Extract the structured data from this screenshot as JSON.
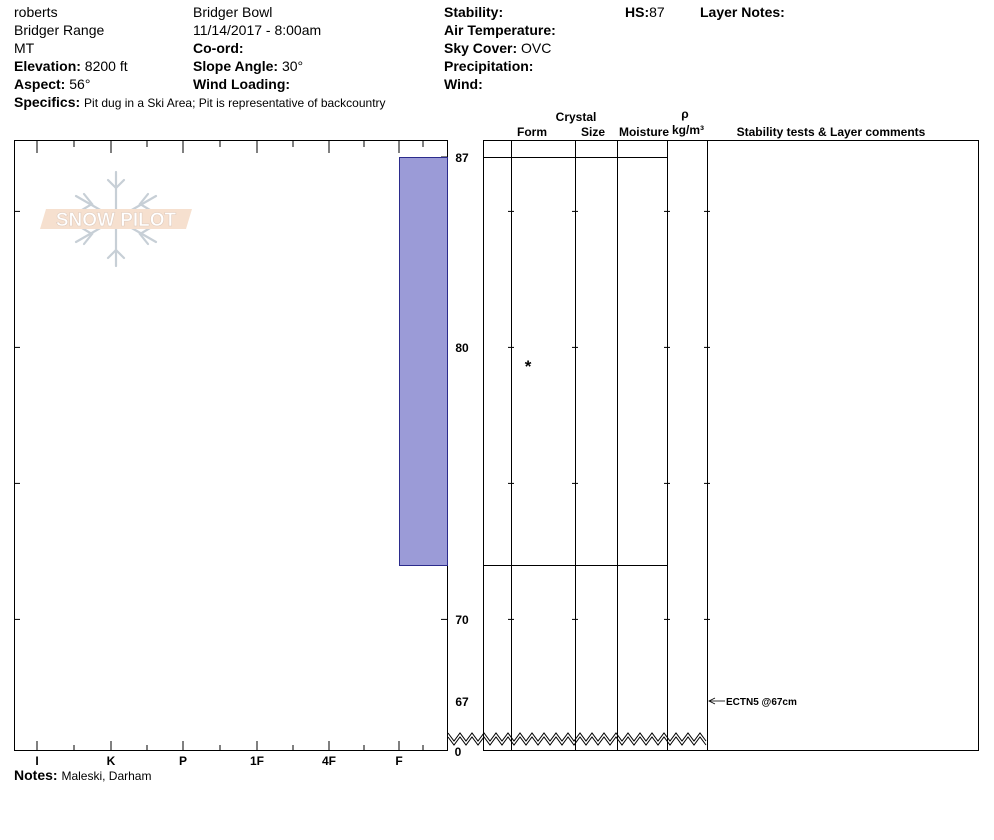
{
  "header": {
    "observer": "roberts",
    "range": "Bridger Range",
    "state": "MT",
    "elevation_label": "Elevation:",
    "elevation_value": "8200 ft",
    "aspect_label": "Aspect:",
    "aspect_value": "56°",
    "specifics_label": "Specifics:",
    "specifics_value": "Pit dug in a Ski Area; Pit is representative of backcountry",
    "location": "Bridger Bowl",
    "datetime": "11/14/2017 - 8:00am",
    "coord_label": "Co-ord:",
    "slope_label": "Slope Angle:",
    "slope_value": "30°",
    "wind_loading_label": "Wind Loading:",
    "stability_label": "Stability:",
    "air_temp_label": "Air Temperature:",
    "sky_cover_label": "Sky Cover:",
    "sky_cover_value": "OVC",
    "precip_label": "Precipitation:",
    "wind_label": "Wind:",
    "hs_label": "HS:",
    "hs_value": "87",
    "layer_notes_label": "Layer Notes:"
  },
  "columns": {
    "crystal": "Crystal",
    "form": "Form",
    "size": "Size",
    "moisture": "Moisture",
    "rho": "ρ",
    "density_unit": "kg/m³",
    "stability_comments": "Stability tests & Layer comments"
  },
  "logo_text": "SNOW PILOT",
  "notes_label": "Notes:",
  "notes_value": "Maleski, Darham",
  "chart_data": {
    "type": "bar",
    "hardness_scale": [
      "I",
      "K",
      "P",
      "1F",
      "4F",
      "F"
    ],
    "depth_tick_labels": [
      "87",
      "80",
      "70",
      "67",
      "0"
    ],
    "ylim": [
      0,
      87
    ],
    "layers": [
      {
        "top_cm": 87,
        "bottom_cm": 72,
        "hardness": "F",
        "form": "*"
      }
    ],
    "stability_tests": [
      {
        "depth_cm": 67,
        "label": "ECTN5 @67cm"
      }
    ],
    "colors": {
      "layer_fill": "#9b9bd7",
      "layer_stroke": "#2b2b8c"
    }
  }
}
